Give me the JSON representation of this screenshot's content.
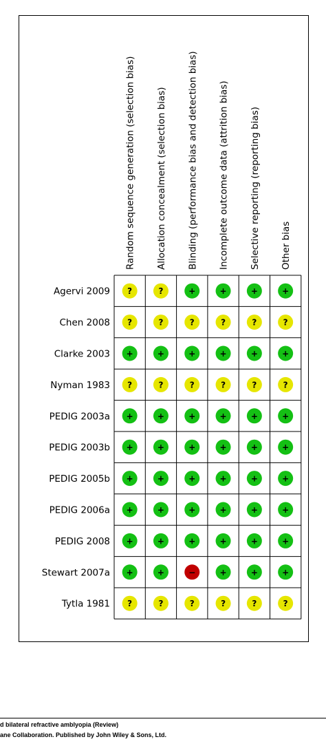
{
  "domains": [
    "Random sequence generation (selection bias)",
    "Allocation concealment (selection bias)",
    "Blinding (performance bias and detection bias)",
    "Incomplete outcome data (attrition bias)",
    "Selective reporting (reporting bias)",
    "Other bias"
  ],
  "symbol_colors": {
    "+": "#14c014",
    "?": "#e6e600",
    "−": "#c00000"
  },
  "studies": [
    {
      "name": "Agervi 2009",
      "judgments": [
        "?",
        "?",
        "+",
        "+",
        "+",
        "+"
      ]
    },
    {
      "name": "Chen 2008",
      "judgments": [
        "?",
        "?",
        "?",
        "?",
        "?",
        "?"
      ]
    },
    {
      "name": "Clarke 2003",
      "judgments": [
        "+",
        "+",
        "+",
        "+",
        "+",
        "+"
      ]
    },
    {
      "name": "Nyman 1983",
      "judgments": [
        "?",
        "?",
        "?",
        "?",
        "?",
        "?"
      ]
    },
    {
      "name": "PEDIG 2003a",
      "judgments": [
        "+",
        "+",
        "+",
        "+",
        "+",
        "+"
      ]
    },
    {
      "name": "PEDIG 2003b",
      "judgments": [
        "+",
        "+",
        "+",
        "+",
        "+",
        "+"
      ]
    },
    {
      "name": "PEDIG 2005b",
      "judgments": [
        "+",
        "+",
        "+",
        "+",
        "+",
        "+"
      ]
    },
    {
      "name": "PEDIG 2006a",
      "judgments": [
        "+",
        "+",
        "+",
        "+",
        "+",
        "+"
      ]
    },
    {
      "name": "PEDIG 2008",
      "judgments": [
        "+",
        "+",
        "+",
        "+",
        "+",
        "+"
      ]
    },
    {
      "name": "Stewart 2007a",
      "judgments": [
        "+",
        "+",
        "−",
        "+",
        "+",
        "+"
      ]
    },
    {
      "name": "Tytla 1981",
      "judgments": [
        "?",
        "?",
        "?",
        "?",
        "?",
        "?"
      ]
    }
  ],
  "footer": {
    "line1": "d bilateral refractive amblyopia (Review)",
    "line2": "ane Collaboration. Published by John Wiley & Sons, Ltd."
  }
}
